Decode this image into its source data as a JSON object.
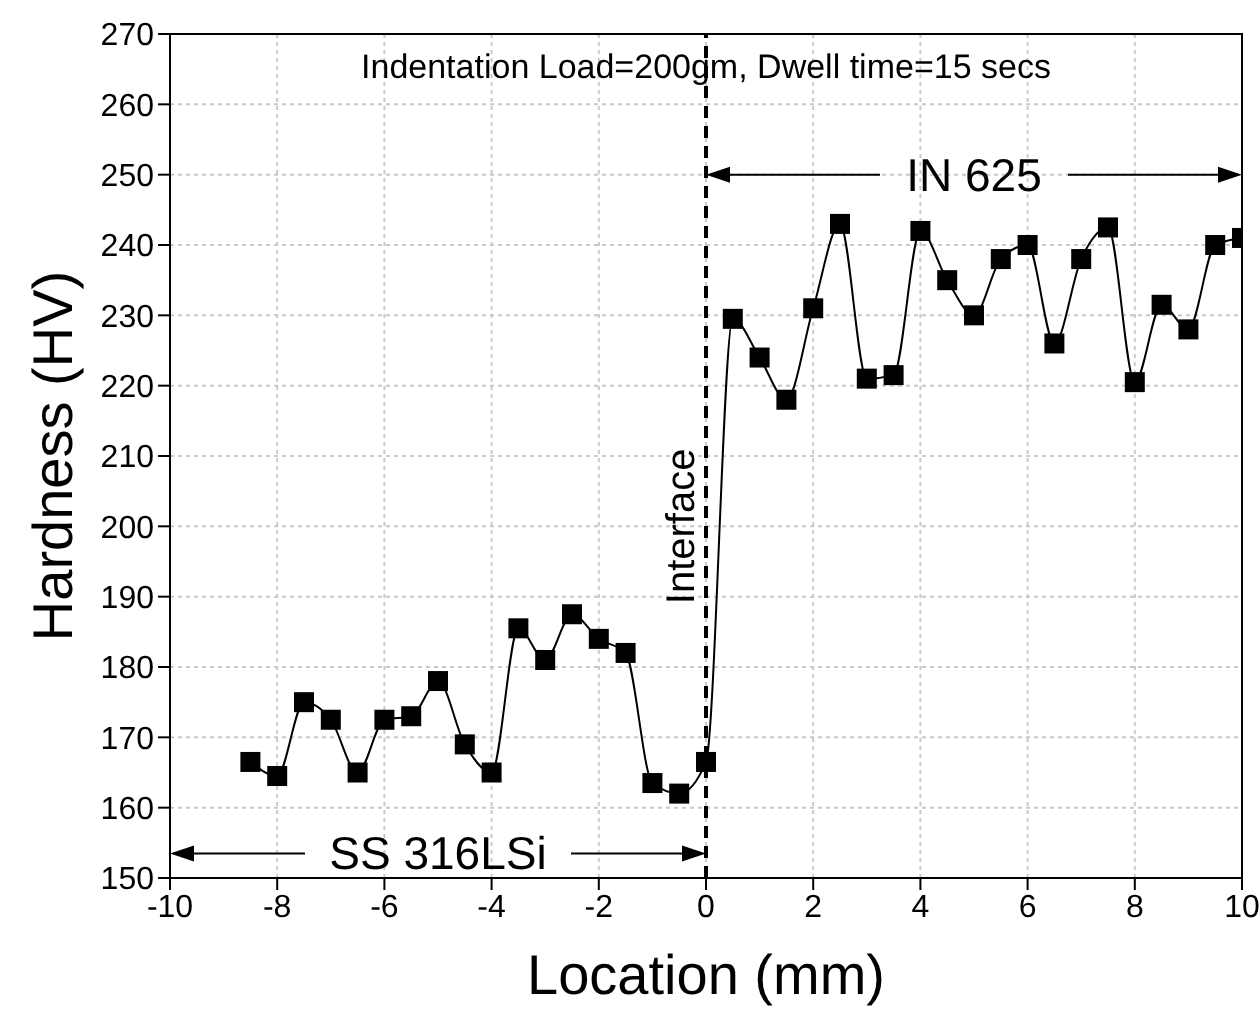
{
  "chart_data": {
    "type": "line",
    "title": "Indentation Load=200gm, Dwell time=15 secs",
    "xlabel": "Location (mm)",
    "ylabel": "Hardness (HV)",
    "x": [
      -8.5,
      -8,
      -7.5,
      -7,
      -6.5,
      -6,
      -5.5,
      -5,
      -4.5,
      -4,
      -3.5,
      -3,
      -2.5,
      -2,
      -1.5,
      -1,
      -0.5,
      0,
      0.5,
      1,
      1.5,
      2,
      2.5,
      3,
      3.5,
      4,
      4.5,
      5,
      5.5,
      6,
      6.5,
      7,
      7.5,
      8,
      8.5,
      9,
      9.5,
      10
    ],
    "series": [
      {
        "color": "#000000",
        "values": [
          166.5,
          164.5,
          175,
          172.5,
          165,
          172.5,
          173,
          178,
          169,
          165,
          185.5,
          181,
          187.5,
          184,
          182,
          163.5,
          162,
          166.5,
          229.5,
          224,
          218,
          231,
          243,
          221,
          221.5,
          242,
          235,
          230,
          238,
          240,
          226,
          238,
          242.5,
          220.5,
          231.5,
          228,
          240,
          241
        ]
      }
    ],
    "xlim": [
      -10,
      10
    ],
    "xticks": [
      -10,
      -8,
      -6,
      -4,
      -2,
      0,
      2,
      4,
      6,
      8,
      10
    ],
    "ylim": [
      150,
      270
    ],
    "yticks": [
      150,
      160,
      170,
      180,
      190,
      200,
      210,
      220,
      230,
      240,
      250,
      260,
      270
    ],
    "grid": true,
    "marker": "square",
    "line_style": "solid",
    "ref_lines": [
      {
        "axis": "x",
        "value": 0,
        "label": "Interface",
        "color": "#000000",
        "line_style": "dashed"
      }
    ],
    "annotations": [
      {
        "text": "SS 316LSi",
        "x": 0,
        "y": 153.5
      },
      "IN 625"
    ]
  }
}
